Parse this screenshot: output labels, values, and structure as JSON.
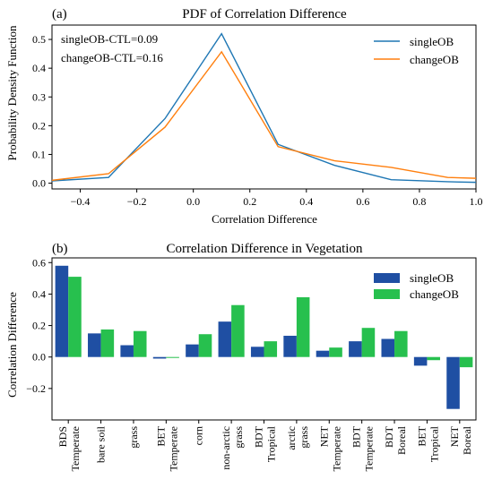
{
  "chart_data": [
    {
      "type": "line",
      "panel_label": "(a)",
      "title": "PDF of Correlation Difference",
      "xlabel": "Correlation Difference",
      "ylabel": "Probability Density Function",
      "xlim": [
        -0.5,
        1.0
      ],
      "ylim": [
        -0.02,
        0.55
      ],
      "xticks": [
        -0.4,
        -0.2,
        0.0,
        0.2,
        0.4,
        0.6,
        0.8,
        1.0
      ],
      "xtick_labels": [
        "−0.4",
        "−0.2",
        "0.0",
        "0.2",
        "0.4",
        "0.6",
        "0.8",
        "1.0"
      ],
      "yticks": [
        0.0,
        0.1,
        0.2,
        0.3,
        0.4,
        0.5
      ],
      "ytick_labels": [
        "0.0",
        "0.1",
        "0.2",
        "0.3",
        "0.4",
        "0.5"
      ],
      "annotations": [
        "singleOB-CTL=0.09",
        "changeOB-CTL=0.16"
      ],
      "legend_position": "top-right",
      "series": [
        {
          "name": "singleOB",
          "color": "#1f77b4",
          "x": [
            -0.5,
            -0.3,
            -0.1,
            0.1,
            0.3,
            0.5,
            0.7,
            0.9,
            1.0
          ],
          "y": [
            0.008,
            0.02,
            0.225,
            0.52,
            0.135,
            0.062,
            0.012,
            0.005,
            0.003
          ]
        },
        {
          "name": "changeOB",
          "color": "#ff7f0e",
          "x": [
            -0.5,
            -0.3,
            -0.1,
            0.1,
            0.3,
            0.5,
            0.7,
            0.9,
            1.0
          ],
          "y": [
            0.01,
            0.033,
            0.195,
            0.457,
            0.127,
            0.078,
            0.055,
            0.02,
            0.017
          ]
        }
      ]
    },
    {
      "type": "bar",
      "panel_label": "(b)",
      "title": "Correlation Difference in Vegetation",
      "xlabel": "",
      "ylabel": "Correlation Difference",
      "ylim": [
        -0.4,
        0.63
      ],
      "yticks": [
        -0.2,
        0.0,
        0.2,
        0.4,
        0.6
      ],
      "ytick_labels": [
        "−0.2",
        "0.0",
        "0.2",
        "0.4",
        "0.6"
      ],
      "legend_position": "top-right",
      "categories": [
        [
          "BDS",
          "Temperate"
        ],
        [
          "bare soil"
        ],
        [
          "grass"
        ],
        [
          "BET",
          "Temperate"
        ],
        [
          "corn"
        ],
        [
          "non-arctic",
          "grass"
        ],
        [
          "BDT",
          "Tropical"
        ],
        [
          "arctic",
          "grass"
        ],
        [
          "NET",
          "Temperate"
        ],
        [
          "BDT",
          "Temperate"
        ],
        [
          "BDT",
          "Boreal"
        ],
        [
          "BET",
          "Tropical"
        ],
        [
          "NET",
          "Boreal"
        ]
      ],
      "series": [
        {
          "name": "singleOB",
          "color": "#1f4fa3",
          "values": [
            0.58,
            0.15,
            0.075,
            -0.01,
            0.08,
            0.225,
            0.065,
            0.135,
            0.04,
            0.1,
            0.115,
            -0.055,
            -0.33
          ]
        },
        {
          "name": "changeOB",
          "color": "#27c04e",
          "values": [
            0.51,
            0.175,
            0.165,
            -0.005,
            0.145,
            0.33,
            0.1,
            0.38,
            0.06,
            0.185,
            0.165,
            -0.02,
            -0.065
          ]
        }
      ]
    }
  ]
}
